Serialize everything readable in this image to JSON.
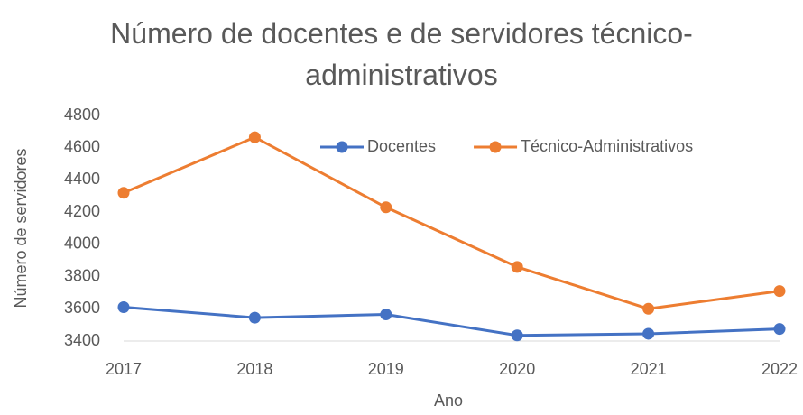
{
  "chart_data": {
    "type": "line",
    "title": "Número de docentes e de servidores técnico-administrativos",
    "x_label": "Ano",
    "y_label": "Número de servidores",
    "categories": [
      "2017",
      "2018",
      "2019",
      "2020",
      "2021",
      "2022"
    ],
    "series": [
      {
        "name": "Docentes",
        "color": "#4472c4",
        "values": [
          3610,
          3545,
          3565,
          3435,
          3445,
          3475
        ]
      },
      {
        "name": "Técnico-Administrativos",
        "color": "#ed7d31",
        "values": [
          4320,
          4665,
          4230,
          3860,
          3600,
          3710
        ]
      }
    ],
    "ylim": [
      3400,
      4800
    ],
    "yticks": [
      3400,
      3600,
      3800,
      4000,
      4200,
      4400,
      4600,
      4800
    ],
    "grid": false,
    "legend": "top"
  }
}
